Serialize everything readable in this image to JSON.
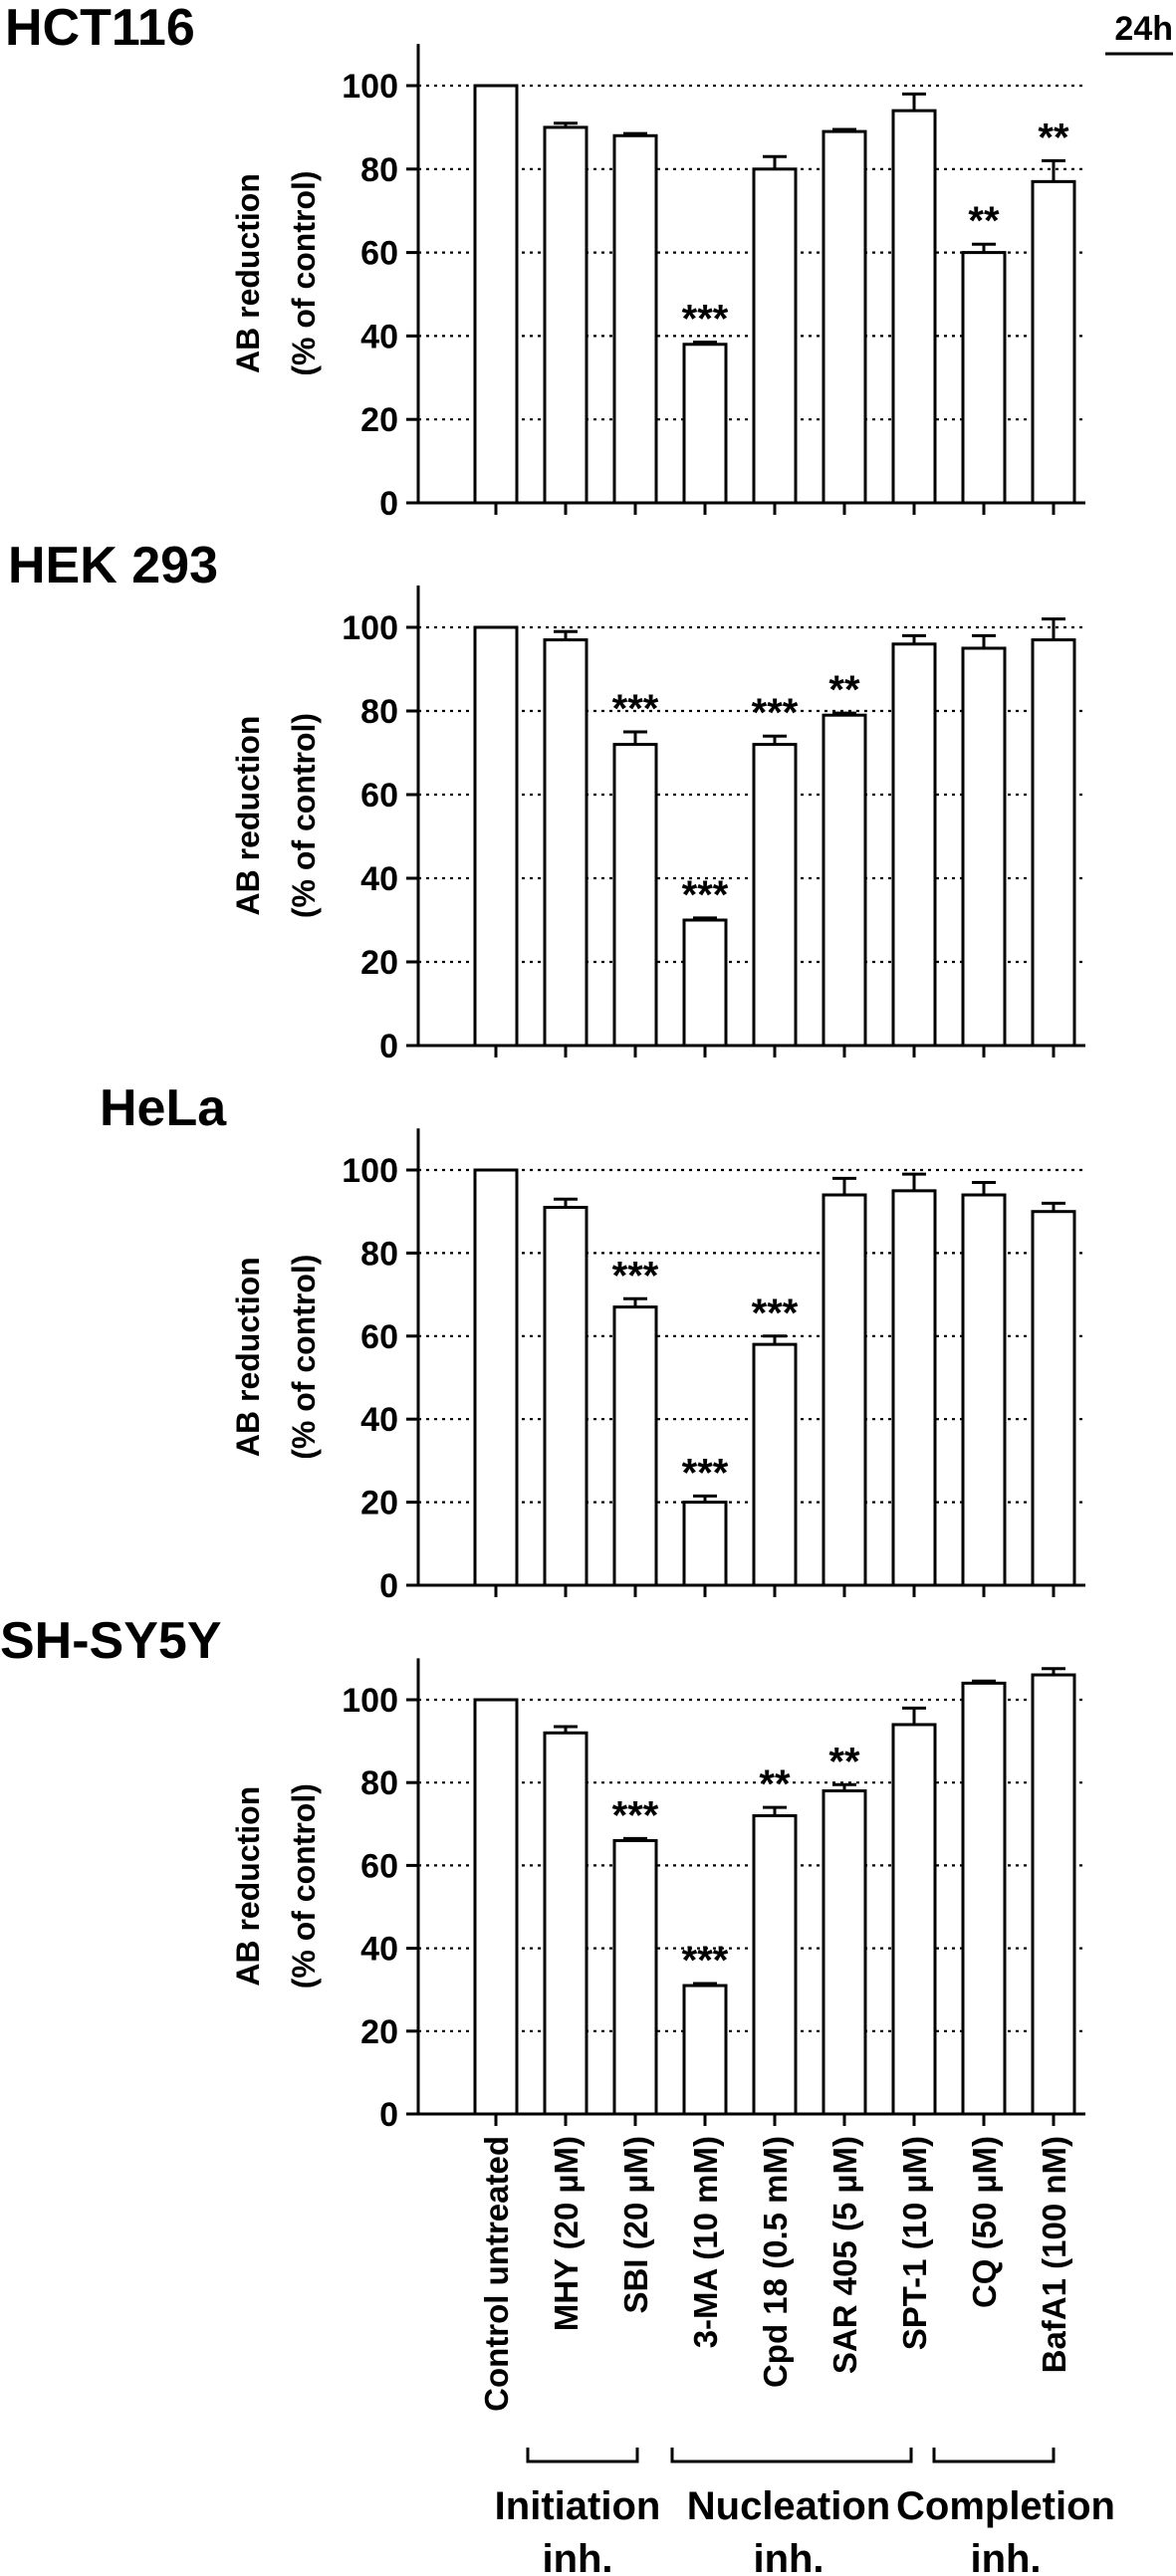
{
  "figure": {
    "time_label": "24h",
    "y_axis_label_line1": "AB reduction",
    "y_axis_label_line2": "(% of control)",
    "y_ticks": [
      "0",
      "20",
      "40",
      "60",
      "80",
      "100"
    ],
    "categories": [
      "Control untreated",
      "MHY (20 µM)",
      "SBI (20 µM)",
      "3-MA (10 mM)",
      "Cpd 18 (0.5 mM)",
      "SAR 405 (5 µM)",
      "SPT-1 (10 µM)",
      "CQ (50 µM)",
      "BafA1 (100 nM)"
    ],
    "groups": [
      {
        "line1": "Initiation",
        "line2": "inh."
      },
      {
        "line1": "Nucleation",
        "line2": "inh."
      },
      {
        "line1": "Completion",
        "line2": "inh."
      }
    ]
  },
  "chart_data": [
    {
      "type": "bar",
      "title": "HCT116",
      "ylabel": "AB reduction (% of control)",
      "ylim": [
        0,
        110
      ],
      "grid": true,
      "categories": [
        "Control untreated",
        "MHY (20 µM)",
        "SBI (20 µM)",
        "3-MA (10 mM)",
        "Cpd 18 (0.5 mM)",
        "SAR 405 (5 µM)",
        "SPT-1 (10 µM)",
        "CQ (50 µM)",
        "BafA1 (100 nM)"
      ],
      "values": [
        100,
        90,
        88,
        38,
        80,
        89,
        94,
        60,
        77
      ],
      "errors": [
        0,
        1,
        0.5,
        0.5,
        3,
        0.5,
        4,
        2,
        5
      ],
      "significance": [
        "",
        "",
        "",
        "***",
        "",
        "",
        "",
        "**",
        "**"
      ]
    },
    {
      "type": "bar",
      "title": "HEK 293",
      "ylabel": "AB reduction (% of control)",
      "ylim": [
        0,
        110
      ],
      "grid": true,
      "categories": [
        "Control untreated",
        "MHY (20 µM)",
        "SBI (20 µM)",
        "3-MA (10 mM)",
        "Cpd 18 (0.5 mM)",
        "SAR 405 (5 µM)",
        "SPT-1 (10 µM)",
        "CQ (50 µM)",
        "BafA1 (100 nM)"
      ],
      "values": [
        100,
        97,
        72,
        30,
        72,
        79,
        96,
        95,
        97
      ],
      "errors": [
        0,
        2,
        3,
        0.5,
        2,
        0.5,
        2,
        3,
        5
      ],
      "significance": [
        "",
        "",
        "***",
        "***",
        "***",
        "**",
        "",
        "",
        ""
      ]
    },
    {
      "type": "bar",
      "title": "HeLa",
      "ylabel": "AB reduction (% of control)",
      "ylim": [
        0,
        110
      ],
      "grid": true,
      "categories": [
        "Control untreated",
        "MHY (20 µM)",
        "SBI (20 µM)",
        "3-MA (10 mM)",
        "Cpd 18 (0.5 mM)",
        "SAR 405 (5 µM)",
        "SPT-1 (10 µM)",
        "CQ (50 µM)",
        "BafA1 (100 nM)"
      ],
      "values": [
        100,
        91,
        67,
        20,
        58,
        94,
        95,
        94,
        90
      ],
      "errors": [
        0,
        2,
        2,
        1.5,
        2,
        4,
        4,
        3,
        2
      ],
      "significance": [
        "",
        "",
        "***",
        "***",
        "***",
        "",
        "",
        "",
        ""
      ]
    },
    {
      "type": "bar",
      "title": "SH-SY5Y",
      "ylabel": "AB reduction (% of control)",
      "ylim": [
        0,
        110
      ],
      "grid": true,
      "categories": [
        "Control untreated",
        "MHY (20 µM)",
        "SBI (20 µM)",
        "3-MA (10 mM)",
        "Cpd 18 (0.5 mM)",
        "SAR 405 (5 µM)",
        "SPT-1 (10 µM)",
        "CQ (50 µM)",
        "BafA1 (100 nM)"
      ],
      "values": [
        100,
        92,
        66,
        31,
        72,
        78,
        94,
        104,
        106
      ],
      "errors": [
        0,
        1.5,
        0.5,
        0.5,
        2,
        1.5,
        4,
        0.5,
        1.5
      ],
      "significance": [
        "",
        "",
        "***",
        "***",
        "**",
        "**",
        "",
        "",
        ""
      ]
    }
  ]
}
